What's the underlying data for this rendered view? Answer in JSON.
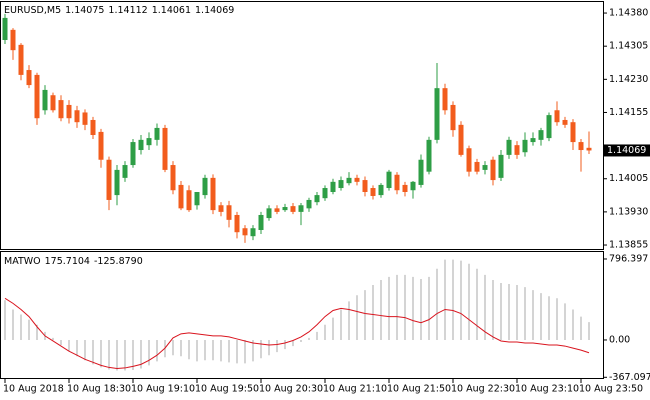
{
  "chart_data": [
    {
      "type": "candlestick",
      "symbol": "EURUSD,M5",
      "categories": [
        "10 Aug 2018",
        null,
        null,
        null,
        null,
        null,
        null,
        null,
        "10 Aug 18:30",
        null,
        null,
        null,
        null,
        null,
        null,
        null,
        "10 Aug 19:10",
        null,
        null,
        null,
        null,
        null,
        null,
        null,
        "10 Aug 19:50",
        null,
        null,
        null,
        null,
        null,
        null,
        null,
        "10 Aug 20:30",
        null,
        null,
        null,
        null,
        null,
        null,
        null,
        "10 Aug 21:10",
        null,
        null,
        null,
        null,
        null,
        null,
        null,
        "10 Aug 21:50",
        null,
        null,
        null,
        null,
        null,
        null,
        null,
        "10 Aug 22:30",
        null,
        null,
        null,
        null,
        null,
        null,
        null,
        "10 Aug 23:10",
        null,
        null,
        null,
        null,
        null,
        null,
        null,
        "10 Aug 23:50",
        null
      ],
      "open": [
        1.14319,
        1.14342,
        1.14308,
        1.14251,
        1.1424,
        1.1416,
        1.14194,
        1.14183,
        1.14172,
        1.1416,
        1.14155,
        1.14138,
        1.14111,
        1.14048,
        1.13968,
        1.14007,
        1.14036,
        1.1407,
        1.14081,
        1.14093,
        1.1412,
        1.14036,
        1.13991,
        1.13979,
        1.13945,
        1.13968,
        1.14007,
        1.13945,
        1.13945,
        1.13923,
        1.13893,
        1.13875,
        1.13889,
        1.13916,
        1.13938,
        1.13934,
        1.13943,
        1.1393,
        1.13938,
        1.13952,
        1.13961,
        1.13975,
        1.13984,
        1.13995,
        1.14007,
        1.14002,
        1.13984,
        1.13968,
        1.13984,
        1.14014,
        1.13991,
        1.13979,
        1.13991,
        1.14021,
        1.14093,
        1.1421,
        1.14172,
        1.14127,
        1.14074,
        1.14043,
        1.14025,
        1.14048,
        1.14007,
        1.14059,
        1.14081,
        1.14065,
        1.14088,
        1.14093,
        1.14097,
        1.1416,
        1.14138,
        1.14133,
        1.14088,
        1.14075
      ],
      "high": [
        1.14378,
        1.14346,
        1.14312,
        1.14262,
        1.14245,
        1.14217,
        1.142,
        1.14194,
        1.14183,
        1.1417,
        1.14162,
        1.14145,
        1.14118,
        1.14055,
        1.14036,
        1.14045,
        1.14095,
        1.14104,
        1.1411,
        1.1413,
        1.14127,
        1.14045,
        1.14,
        1.1399,
        1.13975,
        1.14014,
        1.14015,
        1.13952,
        1.13955,
        1.1393,
        1.139,
        1.139,
        1.1393,
        1.13945,
        1.13945,
        1.13948,
        1.1395,
        1.1395,
        1.13962,
        1.13975,
        1.1399,
        1.14005,
        1.1401,
        1.1402,
        1.14014,
        1.1401,
        1.1399,
        1.13995,
        1.14025,
        1.1402,
        1.13998,
        1.14,
        1.1406,
        1.141,
        1.14267,
        1.1422,
        1.1418,
        1.14135,
        1.1408,
        1.1405,
        1.14045,
        1.14055,
        1.1407,
        1.141,
        1.1409,
        1.1411,
        1.1411,
        1.1412,
        1.14155,
        1.1418,
        1.14145,
        1.1414,
        1.14095,
        1.14112
      ],
      "low": [
        1.1431,
        1.14274,
        1.14228,
        1.1421,
        1.14127,
        1.1415,
        1.14155,
        1.14135,
        1.1413,
        1.1412,
        1.14115,
        1.14095,
        1.1403,
        1.13934,
        1.13945,
        1.13998,
        1.1403,
        1.1406,
        1.1407,
        1.1408,
        1.1402,
        1.1397,
        1.13934,
        1.1393,
        1.13935,
        1.1396,
        1.13925,
        1.1392,
        1.13895,
        1.1387,
        1.1386,
        1.13866,
        1.1388,
        1.1391,
        1.13925,
        1.1393,
        1.13925,
        1.139,
        1.1393,
        1.13945,
        1.13955,
        1.1397,
        1.13978,
        1.1399,
        1.1399,
        1.13965,
        1.13958,
        1.13962,
        1.13978,
        1.1397,
        1.13965,
        1.1396,
        1.13985,
        1.14015,
        1.14085,
        1.1415,
        1.141,
        1.14055,
        1.1401,
        1.14015,
        1.14015,
        1.1399,
        1.14,
        1.1405,
        1.1405,
        1.14055,
        1.1408,
        1.1408,
        1.1409,
        1.14125,
        1.1412,
        1.1407,
        1.14021,
        1.14061
      ],
      "close": [
        1.14369,
        1.14296,
        1.1424,
        1.14217,
        1.14142,
        1.14206,
        1.1416,
        1.14142,
        1.14142,
        1.14133,
        1.14127,
        1.14104,
        1.14048,
        1.13957,
        1.14025,
        1.14036,
        1.14088,
        1.14093,
        1.14097,
        1.1412,
        1.14025,
        1.13979,
        1.13938,
        1.13934,
        1.13975,
        1.14007,
        1.13934,
        1.1393,
        1.13912,
        1.13884,
        1.13877,
        1.13893,
        1.13923,
        1.13938,
        1.1393,
        1.13941,
        1.1393,
        1.13945,
        1.13957,
        1.13968,
        1.13984,
        1.13998,
        1.14002,
        1.14007,
        1.13998,
        1.13975,
        1.13966,
        1.13991,
        1.14021,
        1.13979,
        1.13975,
        1.13998,
        1.14048,
        1.14093,
        1.1421,
        1.1416,
        1.14115,
        1.14059,
        1.14021,
        1.14021,
        1.14036,
        1.14002,
        1.14059,
        1.14093,
        1.14059,
        1.14093,
        1.14097,
        1.14115,
        1.14149,
        1.14133,
        1.14127,
        1.14088,
        1.1407,
        1.14069
      ],
      "up_color": "#2e9e46",
      "down_color": "#f25c1d",
      "ylim": [
        1.13846,
        1.14405
      ],
      "yticks": [
        {
          "value": 1.1438,
          "label": "1.14380"
        },
        1.14305,
        {
          "value": 1.1423,
          "label": "1.14230"
        },
        1.14155,
        1.14005,
        {
          "value": 1.1393,
          "label": "1.13930"
        },
        1.13855
      ]
    },
    {
      "type": "indicator",
      "name": "MATWO",
      "series": [
        {
          "style": "histogram",
          "color": "#a8a8a8",
          "values": [
            390,
            300,
            250,
            200,
            150,
            80,
            20,
            -50,
            -110,
            -160,
            -200,
            -240,
            -270,
            -290,
            -300,
            -300,
            -295,
            -280,
            -250,
            -210,
            -170,
            -150,
            -160,
            -190,
            -210,
            -200,
            -200,
            -210,
            -220,
            -230,
            -230,
            -210,
            -180,
            -150,
            -120,
            -90,
            -60,
            -20,
            20,
            80,
            150,
            220,
            300,
            380,
            440,
            490,
            540,
            590,
            620,
            640,
            640,
            620,
            600,
            620,
            700,
            790,
            790,
            780,
            750,
            700,
            640,
            590,
            560,
            550,
            540,
            520,
            490,
            460,
            430,
            410,
            360,
            300,
            230,
            175.7104
          ]
        },
        {
          "style": "line",
          "color": "#d9141e",
          "value_label": "-125.8790",
          "values": [
            410,
            360,
            300,
            230,
            130,
            40,
            -10,
            -60,
            -110,
            -150,
            -190,
            -220,
            -250,
            -270,
            -280,
            -275,
            -260,
            -240,
            -200,
            -150,
            -80,
            20,
            60,
            70,
            60,
            50,
            40,
            40,
            30,
            10,
            -10,
            -30,
            -40,
            -50,
            -45,
            -30,
            -5,
            30,
            80,
            150,
            230,
            290,
            310,
            300,
            280,
            260,
            250,
            240,
            230,
            230,
            220,
            190,
            170,
            200,
            260,
            300,
            290,
            260,
            200,
            140,
            80,
            30,
            -10,
            -20,
            -20,
            -30,
            -30,
            -40,
            -50,
            -50,
            -60,
            -80,
            -100,
            -125.879
          ]
        }
      ],
      "ylim": [
        -374,
        865
      ],
      "yticks": [
        796.397,
        {
          "value": 0,
          "label": "0.00"
        },
        -367.0978
      ]
    }
  ]
}
